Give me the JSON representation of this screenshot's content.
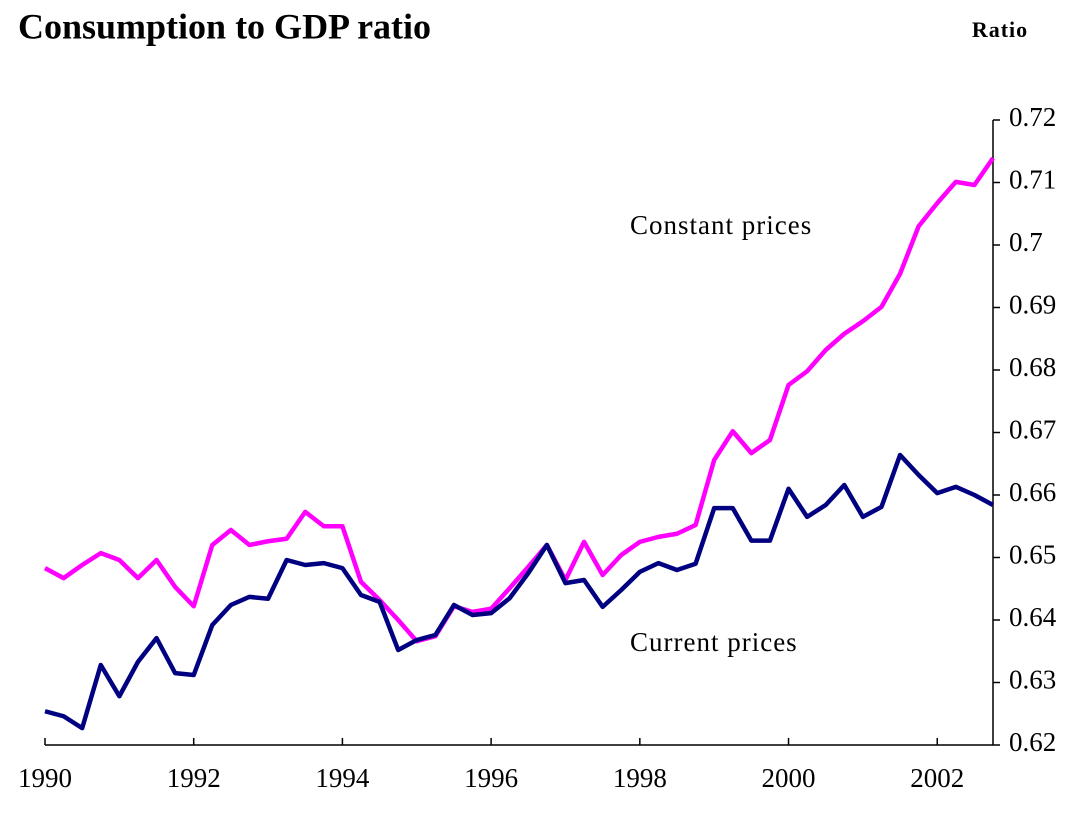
{
  "chart_data": {
    "type": "line",
    "title": "Consumption to GDP ratio",
    "y_label": "Ratio",
    "annotations": [
      "Constant prices",
      "Current prices"
    ],
    "x": [
      1990,
      1990.25,
      1990.5,
      1990.75,
      1991,
      1991.25,
      1991.5,
      1991.75,
      1992,
      1992.25,
      1992.5,
      1992.75,
      1993,
      1993.25,
      1993.5,
      1993.75,
      1994,
      1994.25,
      1994.5,
      1994.75,
      1995,
      1995.25,
      1995.5,
      1995.75,
      1996,
      1996.25,
      1996.5,
      1996.75,
      1997,
      1997.25,
      1997.5,
      1997.75,
      1998,
      1998.25,
      1998.5,
      1998.75,
      1999,
      1999.25,
      1999.5,
      1999.75,
      2000,
      2000.25,
      2000.5,
      2000.75,
      2001,
      2001.25,
      2001.5,
      2001.75,
      2002,
      2002.25,
      2002.5,
      2002.75
    ],
    "series": [
      {
        "name": "Constant prices",
        "color": "#ff00ff",
        "values": [
          0.6483,
          0.6467,
          0.6488,
          0.6507,
          0.6496,
          0.6467,
          0.6496,
          0.6453,
          0.6422,
          0.652,
          0.6544,
          0.652,
          0.6526,
          0.653,
          0.6573,
          0.655,
          0.655,
          0.6461,
          0.6432,
          0.64,
          0.6366,
          0.6374,
          0.6422,
          0.6413,
          0.6418,
          0.6451,
          0.6485,
          0.652,
          0.6464,
          0.6525,
          0.6472,
          0.6504,
          0.6525,
          0.6533,
          0.6538,
          0.6552,
          0.6656,
          0.6702,
          0.6667,
          0.6688,
          0.6776,
          0.6798,
          0.6832,
          0.6858,
          0.6878,
          0.6901,
          0.6954,
          0.703,
          0.7067,
          0.7101,
          0.7096,
          0.7139
        ]
      },
      {
        "name": "Current prices",
        "color": "#000080",
        "values": [
          0.6254,
          0.6246,
          0.6227,
          0.6328,
          0.6278,
          0.6333,
          0.6371,
          0.6315,
          0.6312,
          0.6392,
          0.6424,
          0.6437,
          0.6434,
          0.6496,
          0.6488,
          0.6491,
          0.6483,
          0.644,
          0.6429,
          0.6352,
          0.6368,
          0.6376,
          0.6424,
          0.6408,
          0.6411,
          0.6435,
          0.6475,
          0.652,
          0.6459,
          0.6464,
          0.6421,
          0.6448,
          0.6477,
          0.6491,
          0.648,
          0.649,
          0.6579,
          0.6579,
          0.6527,
          0.6527,
          0.661,
          0.6565,
          0.6584,
          0.6616,
          0.6565,
          0.6581,
          0.6664,
          0.6632,
          0.6603,
          0.6613,
          0.66,
          0.6584
        ]
      }
    ],
    "xlim": [
      1990,
      2002.75
    ],
    "xticks": [
      1990,
      1992,
      1994,
      1996,
      1998,
      2000,
      2002
    ],
    "ylim": [
      0.62,
      0.72
    ],
    "yticks": [
      0.62,
      0.63,
      0.64,
      0.65,
      0.66,
      0.67,
      0.68,
      0.69,
      0.7,
      0.71,
      0.72
    ],
    "y_axis_side": "right",
    "grid": false
  }
}
